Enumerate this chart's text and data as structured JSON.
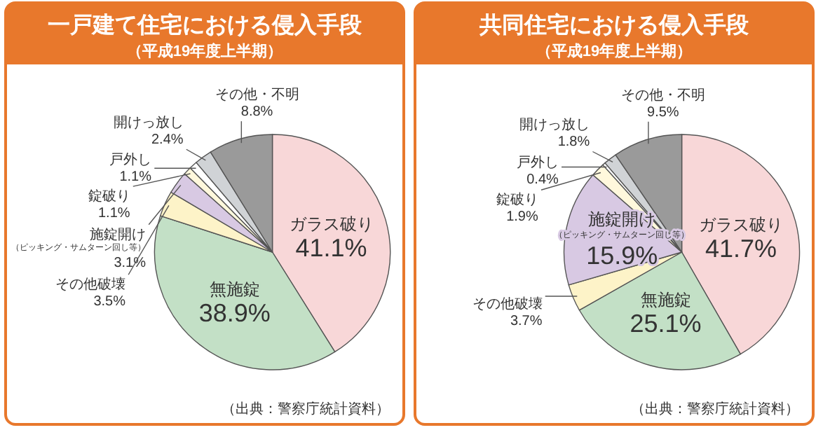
{
  "chart_data": [
    {
      "type": "pie",
      "title": "一戸建て住宅における侵入手段",
      "subtitle": "（平成19年度上半期）",
      "categories": [
        "ガラス破り",
        "無施錠",
        "その他破壊",
        "施錠開け（ピッキング・サムターン回し等）",
        "錠破り",
        "戸外し",
        "開けっ放し",
        "その他・不明"
      ],
      "values": [
        41.1,
        38.9,
        3.5,
        3.1,
        1.1,
        1.1,
        2.4,
        8.8
      ],
      "value_labels": [
        "41.1%",
        "38.9%",
        "3.5%",
        "3.1%",
        "1.1%",
        "1.1%",
        "2.4%",
        "8.8%"
      ],
      "colors": [
        "#f8d7d8",
        "#c3e0c6",
        "#fdf3c8",
        "#d8c9e3",
        "#fff8dc",
        "#ffffff",
        "#d0d3d6",
        "#9a9a9a"
      ],
      "annotations": [
        "（出典：警察庁統計資料）"
      ]
    },
    {
      "type": "pie",
      "title": "共同住宅における侵入手段",
      "subtitle": "（平成19年度上半期）",
      "categories": [
        "ガラス破り",
        "無施錠",
        "その他破壊",
        "施錠開け（ピッキング・サムターン回し等）",
        "錠破り",
        "戸外し",
        "開けっ放し",
        "その他・不明"
      ],
      "values": [
        41.7,
        25.1,
        3.7,
        15.9,
        1.9,
        0.4,
        1.8,
        9.5
      ],
      "value_labels": [
        "41.7%",
        "25.1%",
        "3.7%",
        "15.9%",
        "1.9%",
        "0.4%",
        "1.8%",
        "9.5%"
      ],
      "colors": [
        "#f8d7d8",
        "#c3e0c6",
        "#fdf3c8",
        "#d8c9e3",
        "#fff8dc",
        "#ffffff",
        "#d0d3d6",
        "#9a9a9a"
      ],
      "annotations": [
        "（出典：警察庁統計資料）"
      ]
    }
  ]
}
